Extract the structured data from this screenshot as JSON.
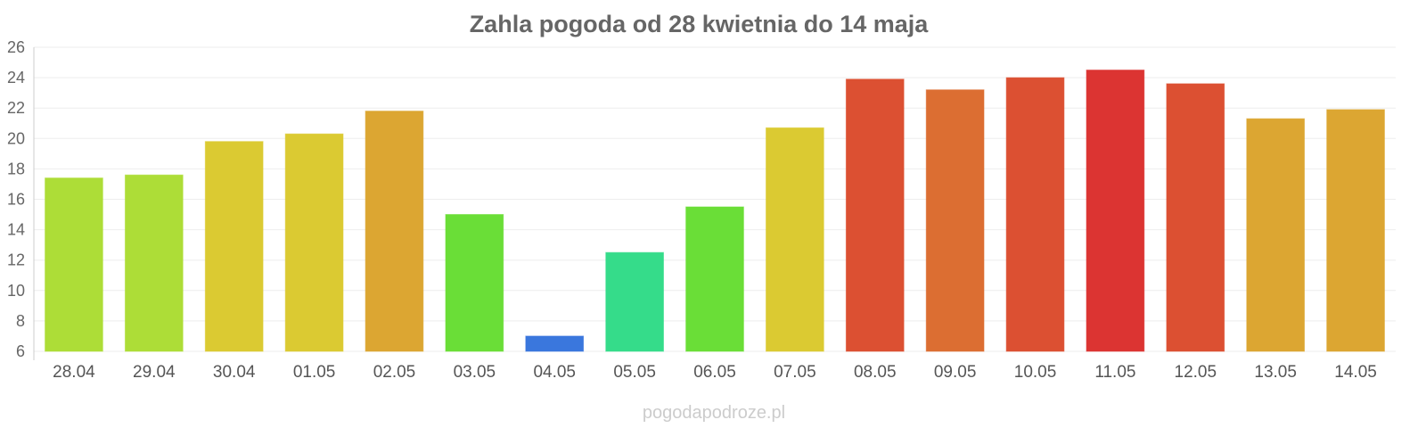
{
  "chart_data": {
    "type": "bar",
    "title": "Zahla pogoda od 28 kwietnia do 14 maja",
    "xlabel": "",
    "ylabel": "",
    "ylim": [
      6,
      26
    ],
    "yticks": [
      6,
      8,
      10,
      12,
      14,
      16,
      18,
      20,
      22,
      24,
      26
    ],
    "grid": true,
    "legend": "none",
    "categories": [
      "28.04",
      "29.04",
      "30.04",
      "01.05",
      "02.05",
      "03.05",
      "04.05",
      "05.05",
      "06.05",
      "07.05",
      "08.05",
      "09.05",
      "10.05",
      "11.05",
      "12.05",
      "13.05",
      "14.05"
    ],
    "values": [
      17.4,
      17.6,
      19.8,
      20.3,
      21.8,
      15.0,
      7.0,
      12.5,
      15.5,
      20.7,
      23.9,
      23.2,
      24.0,
      24.5,
      23.6,
      21.3,
      21.9
    ],
    "colors": [
      "#addd37",
      "#addd37",
      "#dbca32",
      "#dbca32",
      "#dca632",
      "#6ade37",
      "#3a77dd",
      "#35dc8a",
      "#6ade37",
      "#dbca32",
      "#dc5032",
      "#dc6e32",
      "#dc5032",
      "#dc3432",
      "#dc5032",
      "#dca632",
      "#dca632"
    ]
  },
  "credit": "pogodapodroze.pl"
}
